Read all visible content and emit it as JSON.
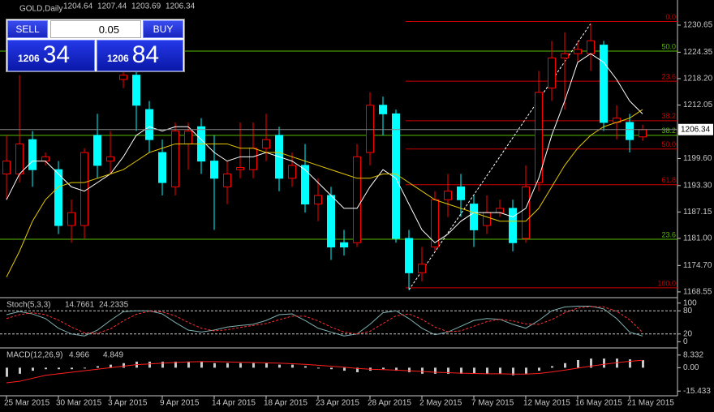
{
  "trade_panel": {
    "sell": "SELL",
    "buy": "BUY",
    "lots": "0.05",
    "bid_big": "1206",
    "bid_small": "34",
    "ask_big": "1206",
    "ask_small": "84"
  },
  "chart_data": [
    {
      "type": "candlestick",
      "title": "GOLD,Daily",
      "readout": [
        1204.64,
        1207.44,
        1203.69,
        1206.34
      ],
      "last_price": 1206.34,
      "up_color": "#ff0000",
      "down_color": "#00ffff",
      "categories": [
        "25 Mar 2015",
        null,
        null,
        null,
        "30 Mar 2015",
        null,
        null,
        null,
        "3 Apr 2015",
        null,
        null,
        null,
        "9 Apr 2015",
        null,
        null,
        null,
        "14 Apr 2015",
        null,
        null,
        null,
        "18 Apr 2015",
        null,
        null,
        null,
        "23 Apr 2015",
        null,
        null,
        null,
        "28 Apr 2015",
        null,
        null,
        null,
        "2 May 2015",
        null,
        null,
        null,
        "7 May 2015",
        null,
        null,
        null,
        "12 May 2015",
        null,
        null,
        null,
        "16 May 2015",
        null,
        null,
        null,
        "21 May 2015",
        null
      ],
      "open": [
        1196,
        1196,
        1204,
        1199,
        1197,
        1184,
        1184,
        1205,
        1199,
        1218,
        1219,
        1211,
        1201,
        1193,
        1203,
        1207,
        1199,
        1193,
        1197,
        1197,
        1202,
        1205,
        1195,
        1198,
        1189,
        1191,
        1180,
        1180,
        1201,
        1212,
        1210,
        1181,
        1173,
        1179,
        1190,
        1193,
        1189,
        1184,
        1187,
        1188,
        1181,
        1194,
        1216,
        1223,
        1224,
        1224,
        1226,
        1208,
        1208,
        1204.64
      ],
      "high": [
        1205,
        1219,
        1206,
        1201,
        1199,
        1190,
        1202,
        1210,
        1206,
        1222,
        1222,
        1213,
        1204,
        1208,
        1208,
        1209,
        1205,
        1199,
        1208,
        1208,
        1210,
        1207,
        1201,
        1203,
        1195,
        1193,
        1183,
        1203,
        1215,
        1214,
        1211,
        1183,
        1179,
        1192,
        1196,
        1196,
        1191,
        1191,
        1190,
        1190,
        1198,
        1220,
        1227,
        1229,
        1227,
        1231,
        1227,
        1212,
        1210,
        1207.44
      ],
      "low": [
        1190,
        1194,
        1193,
        1198,
        1182,
        1180,
        1181,
        1195,
        1196,
        1216,
        1206,
        1201,
        1191,
        1191,
        1197,
        1196,
        1183,
        1189,
        1195,
        1195,
        1199,
        1192,
        1193,
        1187,
        1185,
        1176,
        1177,
        1179,
        1198,
        1205,
        1180,
        1169,
        1171,
        1178,
        1186,
        1186,
        1179,
        1182,
        1186,
        1178,
        1180,
        1192,
        1213,
        1211,
        1222,
        1220,
        1206,
        1204,
        1201,
        1203.69
      ],
      "close": [
        1199,
        1203,
        1197,
        1200,
        1184,
        1187,
        1201,
        1198,
        1200,
        1219,
        1212,
        1204,
        1194,
        1206,
        1206,
        1199,
        1195,
        1196,
        1197.5,
        1202,
        1204,
        1195,
        1198,
        1189,
        1191,
        1179,
        1179,
        1200,
        1212,
        1210,
        1181,
        1173,
        1175,
        1190,
        1192,
        1190,
        1183,
        1187,
        1188,
        1180,
        1193,
        1215,
        1223,
        1224,
        1225,
        1227,
        1208,
        1209,
        1204,
        1206.34
      ],
      "series": [
        {
          "color": "#ffffff",
          "values": [
            1190,
            1196,
            1199,
            1199,
            1196,
            1193,
            1192,
            1194,
            1196,
            1200,
            1205,
            1207,
            1206,
            1207,
            1207,
            1204,
            1201,
            1199,
            1200,
            1200,
            1201,
            1200,
            1199,
            1197,
            1194,
            1191,
            1188,
            1188,
            1193,
            1197,
            1195,
            1189,
            1183,
            1180,
            1182,
            1185,
            1187,
            1187,
            1187,
            1186,
            1188,
            1195,
            1205,
            1213,
            1222,
            1224,
            1222,
            1218,
            1213,
            1210
          ]
        },
        {
          "color": "#e6c800",
          "values": [
            1172,
            1178,
            1185,
            1190,
            1193,
            1194,
            1194,
            1195,
            1196,
            1197,
            1199,
            1201,
            1202,
            1203,
            1203,
            1203,
            1203,
            1203,
            1202,
            1202,
            1201,
            1201,
            1200,
            1199,
            1198,
            1197,
            1196,
            1195,
            1195,
            1196,
            1196,
            1194,
            1192,
            1190,
            1189,
            1188,
            1187,
            1186,
            1185,
            1185,
            1185,
            1188,
            1193,
            1198,
            1202,
            1205,
            1207,
            1208,
            1209,
            1211
          ]
        }
      ],
      "fibo": [
        {
          "label": "0.0",
          "value": 1231.5,
          "color": "#cc0000"
        },
        {
          "label": "23.6",
          "value": 1217.6,
          "color": "#cc0000"
        },
        {
          "label": "38.2",
          "value": 1208.4,
          "color": "#cc0000"
        },
        {
          "label": "50.0",
          "value": 1201.8,
          "color": "#cc0000"
        },
        {
          "label": "61.8",
          "value": 1193.5,
          "color": "#cc0000"
        },
        {
          "label": "100.0",
          "value": 1169.5,
          "color": "#cc0000"
        },
        {
          "label": "50.0",
          "value": 1224.6,
          "color": "#55bb00"
        },
        {
          "label": "38.2",
          "value": 1205.0,
          "color": "#55bb00"
        },
        {
          "label": "23.6",
          "value": 1180.8,
          "color": "#55bb00"
        }
      ],
      "ylim": [
        1167.4,
        1236.5
      ],
      "yticks": [
        1230.65,
        1224.35,
        {
          "value": 1218.2,
          "label": "1218.20"
        },
        1212.05,
        {
          "value": 1199.6,
          "label": "1199.60"
        },
        {
          "value": 1193.3,
          "label": "1193.30"
        },
        1187.15,
        {
          "value": 1181,
          "label": "1181.00"
        },
        {
          "value": 1174.7,
          "label": "1174.70"
        },
        1168.55
      ]
    },
    {
      "type": "oscillator",
      "title": "Stoch(5,3,3)",
      "readout": [
        14.7661,
        24.2335
      ],
      "levels": [
        20,
        80
      ],
      "series": [
        {
          "color": "#7fb0b0",
          "values": [
            70,
            78,
            72,
            60,
            35,
            20,
            15,
            30,
            55,
            78,
            80,
            80,
            72,
            50,
            30,
            25,
            30,
            38,
            42,
            45,
            55,
            70,
            72,
            55,
            35,
            25,
            15,
            20,
            45,
            75,
            80,
            60,
            35,
            18,
            25,
            40,
            55,
            60,
            58,
            45,
            35,
            55,
            80,
            90,
            92,
            92,
            85,
            60,
            25,
            14.7661
          ]
        },
        {
          "color": "#ff3030",
          "dashed": true,
          "values": [
            60,
            70,
            75,
            70,
            56,
            38,
            23,
            22,
            33,
            54,
            71,
            79,
            77,
            67,
            50,
            35,
            28,
            31,
            37,
            42,
            47,
            57,
            66,
            66,
            54,
            38,
            25,
            20,
            27,
            47,
            67,
            72,
            58,
            38,
            26,
            28,
            40,
            52,
            58,
            54,
            46,
            45,
            57,
            75,
            87,
            91,
            90,
            79,
            57,
            24.2335
          ]
        }
      ],
      "ylim": [
        -14,
        112
      ],
      "yticks": [
        0,
        20,
        80,
        100
      ]
    },
    {
      "type": "macd",
      "title": "MACD(12,26,9)",
      "readout": [
        4.966,
        4.849
      ],
      "histogram": {
        "color": "#c8c8c8",
        "values": [
          -6,
          -4,
          -2,
          -1,
          -1,
          -1,
          0,
          1,
          2,
          3,
          4,
          4,
          4,
          4,
          4,
          4,
          3,
          3,
          3,
          3,
          3,
          2,
          2,
          1,
          0,
          -1,
          -2,
          -3,
          -2,
          -1,
          -2,
          -3,
          -4,
          -4,
          -4,
          -4,
          -4,
          -4,
          -4,
          -5,
          -4,
          -2,
          1,
          3,
          5,
          6,
          6,
          6,
          5.5,
          4.966
        ]
      },
      "series": [
        {
          "color": "#ff2020",
          "values": [
            -10,
            -9,
            -7,
            -5,
            -4,
            -3,
            -2,
            -1,
            0,
            1,
            2,
            2.5,
            3,
            3.5,
            3.8,
            4,
            4,
            3.8,
            3.6,
            3.4,
            3.2,
            3,
            2.6,
            2.2,
            1.6,
            1,
            0.3,
            -0.5,
            -1,
            -1.3,
            -1.6,
            -2,
            -2.5,
            -3,
            -3.3,
            -3.6,
            -3.8,
            -4,
            -4,
            -4.2,
            -4.2,
            -3.8,
            -2.8,
            -1.6,
            -0.3,
            1,
            2.2,
            3.3,
            4.2,
            4.849
          ]
        }
      ],
      "ylim": [
        -18,
        12.5
      ],
      "yticks": [
        -15.433,
        {
          "value": 0,
          "label": "0.00"
        },
        8.332
      ]
    }
  ]
}
